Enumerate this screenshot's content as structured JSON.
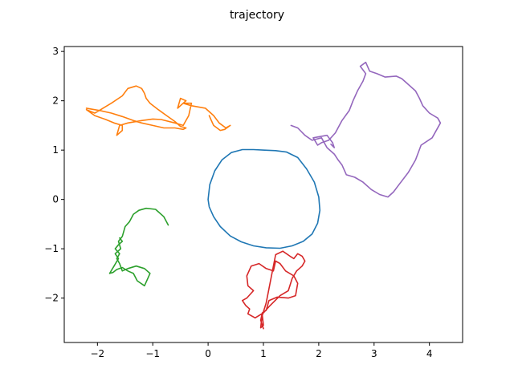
{
  "chart_data": {
    "type": "line",
    "title": "trajectory",
    "xlabel": "",
    "ylabel": "",
    "xlim": [
      -2.6,
      4.6
    ],
    "ylim": [
      -2.9,
      3.1
    ],
    "xticks": [
      -2,
      -1,
      0,
      1,
      2,
      3,
      4
    ],
    "yticks": [
      -2,
      -1,
      0,
      1,
      2,
      3
    ],
    "grid": false,
    "legend": "none",
    "series": [
      {
        "color": "#1f77b4",
        "x": [
          0.0,
          0.03,
          0.12,
          0.25,
          0.42,
          0.62,
          0.82,
          1.02,
          1.22,
          1.42,
          1.62,
          1.78,
          1.92,
          2.0,
          2.02,
          1.98,
          1.88,
          1.72,
          1.52,
          1.3,
          1.05,
          0.82,
          0.6,
          0.4,
          0.22,
          0.1,
          0.02,
          0.0
        ],
        "y": [
          0.0,
          0.3,
          0.58,
          0.8,
          0.95,
          1.01,
          1.01,
          1.0,
          0.99,
          0.96,
          0.85,
          0.62,
          0.35,
          0.05,
          -0.22,
          -0.48,
          -0.7,
          -0.85,
          -0.94,
          -0.99,
          -0.98,
          -0.94,
          -0.86,
          -0.74,
          -0.55,
          -0.35,
          -0.15,
          0.0
        ]
      },
      {
        "color": "#ff7f0e",
        "x": [
          -2.2,
          -1.95,
          -1.75,
          -1.55,
          -1.35,
          -1.2,
          -1.0,
          -0.8,
          -0.6,
          -0.45,
          -0.4,
          -0.5,
          -0.6,
          -0.75,
          -0.9,
          -1.05,
          -1.12,
          -1.15,
          -1.2,
          -1.3,
          -1.45,
          -1.55,
          -1.75,
          -1.9,
          -2.0,
          -2.05,
          -2.2,
          -2.05,
          -1.85,
          -1.7,
          -1.55,
          -1.55,
          -1.65,
          -1.6,
          -1.45,
          -1.2,
          -1.0,
          -0.85,
          -0.6,
          -0.45,
          -0.35,
          -0.3,
          -0.45,
          -0.55,
          -0.5,
          -0.4,
          -0.45,
          -0.3,
          -0.05,
          0.1,
          0.2,
          0.32,
          0.4,
          0.3,
          0.22,
          0.1,
          0.05,
          0.02
        ],
        "y": [
          1.85,
          1.8,
          1.75,
          1.68,
          1.6,
          1.55,
          1.5,
          1.45,
          1.45,
          1.42,
          1.45,
          1.48,
          1.58,
          1.7,
          1.82,
          1.95,
          2.05,
          2.15,
          2.25,
          2.3,
          2.25,
          2.1,
          1.95,
          1.85,
          1.78,
          1.75,
          1.82,
          1.7,
          1.62,
          1.55,
          1.5,
          1.4,
          1.3,
          1.5,
          1.55,
          1.6,
          1.63,
          1.62,
          1.55,
          1.5,
          1.7,
          1.95,
          1.95,
          1.85,
          2.05,
          2.0,
          1.95,
          1.9,
          1.85,
          1.7,
          1.55,
          1.45,
          1.5,
          1.42,
          1.4,
          1.5,
          1.62,
          1.7
        ]
      },
      {
        "color": "#2ca02c",
        "x": [
          -0.72,
          -0.8,
          -0.95,
          -1.12,
          -1.25,
          -1.35,
          -1.42,
          -1.5,
          -1.55,
          -1.62,
          -1.58,
          -1.68,
          -1.62,
          -1.7,
          -1.78,
          -1.72,
          -1.65,
          -1.55,
          -1.45,
          -1.35,
          -1.28,
          -1.15,
          -1.05,
          -1.15,
          -1.3,
          -1.45,
          -1.55,
          -1.6,
          -1.65,
          -1.6,
          -1.68,
          -1.62,
          -1.55,
          -1.6
        ],
        "y": [
          -0.52,
          -0.35,
          -0.2,
          -0.18,
          -0.22,
          -0.3,
          -0.45,
          -0.55,
          -0.75,
          -0.85,
          -1.0,
          -1.1,
          -1.2,
          -1.35,
          -1.5,
          -1.48,
          -1.42,
          -1.38,
          -1.45,
          -1.5,
          -1.65,
          -1.75,
          -1.5,
          -1.4,
          -1.35,
          -1.4,
          -1.45,
          -1.3,
          -1.2,
          -1.1,
          -1.0,
          -0.92,
          -0.85,
          -0.78
        ]
      },
      {
        "color": "#d62728",
        "x": [
          1.0,
          0.95,
          0.98,
          1.05,
          1.1,
          1.25,
          1.45,
          1.58,
          1.62,
          1.55,
          1.4,
          1.3,
          1.22,
          1.18,
          1.05,
          0.92,
          0.78,
          0.7,
          0.72,
          0.82,
          0.7,
          0.62,
          0.68,
          0.75,
          0.72,
          0.85,
          1.0,
          1.12,
          1.3,
          1.45,
          1.52,
          1.6,
          1.7,
          1.75,
          1.7,
          1.62,
          1.55,
          1.48,
          1.35,
          1.22,
          1.05,
          0.98,
          1.0,
          0.95,
          0.97
        ],
        "y": [
          -2.62,
          -2.45,
          -2.3,
          -2.25,
          -2.05,
          -1.98,
          -2.0,
          -1.95,
          -1.7,
          -1.55,
          -1.45,
          -1.3,
          -1.25,
          -1.45,
          -1.4,
          -1.3,
          -1.35,
          -1.55,
          -1.75,
          -1.85,
          -2.0,
          -2.05,
          -2.15,
          -2.22,
          -2.32,
          -2.4,
          -2.3,
          -2.15,
          -1.95,
          -1.85,
          -1.6,
          -1.45,
          -1.35,
          -1.25,
          -1.15,
          -1.1,
          -1.2,
          -1.15,
          -1.05,
          -1.12,
          -2.1,
          -2.35,
          -2.55,
          -2.6,
          -2.4
        ]
      },
      {
        "color": "#9467bd",
        "x": [
          1.5,
          1.62,
          1.75,
          1.88,
          2.05,
          2.15,
          2.28,
          2.35,
          2.42,
          2.5,
          2.65,
          2.8,
          2.95,
          3.1,
          3.25,
          3.35,
          3.45,
          3.62,
          3.75,
          3.85,
          4.05,
          4.2,
          4.15,
          4.0,
          3.88,
          3.82,
          3.75,
          3.6,
          3.5,
          3.4,
          3.2,
          3.05,
          2.92,
          2.85,
          2.75,
          2.85,
          2.8,
          2.7,
          2.62,
          2.55,
          2.42,
          2.3,
          2.18,
          2.05,
          1.98,
          1.9,
          2.15,
          2.25,
          2.28,
          2.22
        ],
        "y": [
          1.5,
          1.45,
          1.3,
          1.2,
          1.25,
          1.05,
          0.92,
          0.8,
          0.7,
          0.5,
          0.45,
          0.35,
          0.2,
          0.1,
          0.05,
          0.15,
          0.3,
          0.55,
          0.8,
          1.1,
          1.25,
          1.55,
          1.65,
          1.75,
          1.9,
          2.05,
          2.2,
          2.35,
          2.45,
          2.5,
          2.48,
          2.55,
          2.6,
          2.78,
          2.7,
          2.55,
          2.4,
          2.2,
          2.0,
          1.8,
          1.6,
          1.35,
          1.2,
          1.15,
          1.1,
          1.25,
          1.3,
          1.15,
          1.05,
          1.12
        ]
      }
    ]
  }
}
